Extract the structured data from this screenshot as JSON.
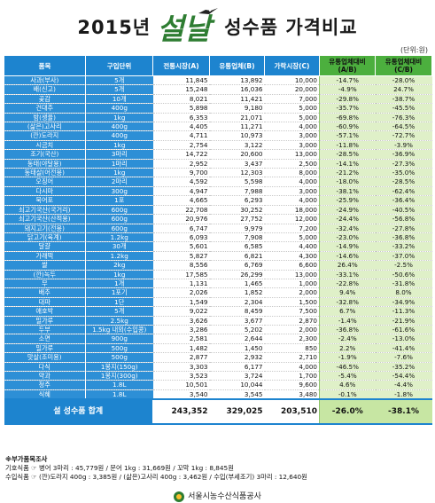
{
  "title": {
    "year": "2015년",
    "brush": "설날",
    "rest": "성수품 가격비교"
  },
  "unit_note": "(단위:원)",
  "headers": {
    "item": "품목",
    "unit": "구입단위",
    "market": "전통시장(A)",
    "distributor": "유통업체(B)",
    "household": "가락시장(C)",
    "ratio_ab": "유통업체대비",
    "ratio_ab_sub": "(A/B)",
    "ratio_cb": "유통업체대비",
    "ratio_cb_sub": "(C/B)"
  },
  "rows": [
    [
      "사과(부사)",
      "5개",
      "11,845",
      "13,892",
      "10,000",
      "-14.7%",
      "-28.0%"
    ],
    [
      "배(신고)",
      "5개",
      "15,248",
      "16,036",
      "20,000",
      "-4.9%",
      "24.7%"
    ],
    [
      "곶감",
      "10개",
      "8,021",
      "11,421",
      "7,000",
      "-29.8%",
      "-38.7%"
    ],
    [
      "건대추",
      "400g",
      "5,898",
      "9,180",
      "5,000",
      "-35.7%",
      "-45.5%"
    ],
    [
      "밤(생율)",
      "1kg",
      "6,353",
      "21,071",
      "5,000",
      "-69.8%",
      "-76.3%"
    ],
    [
      "(삶은)고사리",
      "400g",
      "4,405",
      "11,271",
      "4,000",
      "-60.9%",
      "-64.5%"
    ],
    [
      "(깐)도라지",
      "400g",
      "4,711",
      "10,973",
      "3,000",
      "-57.1%",
      "-72.7%"
    ],
    [
      "시금치",
      "1kg",
      "2,754",
      "3,122",
      "3,000",
      "-11.8%",
      "-3.9%"
    ],
    [
      "조기(국산)",
      "3마리",
      "14,722",
      "20,600",
      "13,000",
      "-28.5%",
      "-36.9%"
    ],
    [
      "동태(야달용)",
      "1마리",
      "2,952",
      "3,437",
      "2,500",
      "-14.1%",
      "-27.3%"
    ],
    [
      "동태살(어전용)",
      "1kg",
      "9,700",
      "12,303",
      "8,000",
      "-21.2%",
      "-35.0%"
    ],
    [
      "오징어",
      "2마리",
      "4,592",
      "5,598",
      "4,000",
      "-18.0%",
      "-28.5%"
    ],
    [
      "다시마",
      "300g",
      "4,947",
      "7,988",
      "3,000",
      "-38.1%",
      "-62.4%"
    ],
    [
      "북어포",
      "1포",
      "4,665",
      "6,293",
      "4,000",
      "-25.9%",
      "-36.4%"
    ],
    [
      "쇠고기국산(국거리)",
      "600g",
      "22,708",
      "30,252",
      "18,000",
      "-24.9%",
      "-40.5%"
    ],
    [
      "쇠고기국산(산적용)",
      "600g",
      "20,976",
      "27,752",
      "12,000",
      "-24.4%",
      "-56.8%"
    ],
    [
      "돼지고기(전용)",
      "600g",
      "6,747",
      "9,979",
      "7,200",
      "-32.4%",
      "-27.8%"
    ],
    [
      "닭고기(육계)",
      "1.2kg",
      "6,093",
      "7,908",
      "5,000",
      "-23.0%",
      "-36.8%"
    ],
    [
      "달걀",
      "30개",
      "5,601",
      "6,585",
      "4,400",
      "-14.9%",
      "-33.2%"
    ],
    [
      "가래떡",
      "1.2kg",
      "5,827",
      "6,821",
      "4,300",
      "-14.6%",
      "-37.0%"
    ],
    [
      "쌀",
      "2kg",
      "8,556",
      "6,769",
      "6,600",
      "26.4%",
      "-2.5%"
    ],
    [
      "(깐)녹두",
      "1kg",
      "17,585",
      "26,299",
      "13,000",
      "-33.1%",
      "-50.6%"
    ],
    [
      "무",
      "1개",
      "1,131",
      "1,465",
      "1,000",
      "-22.8%",
      "-31.8%"
    ],
    [
      "배추",
      "1포기",
      "2,026",
      "1,852",
      "2,000",
      "9.4%",
      "8.0%"
    ],
    [
      "대파",
      "1단",
      "1,549",
      "2,304",
      "1,500",
      "-32.8%",
      "-34.9%"
    ],
    [
      "애호박",
      "5개",
      "9,022",
      "8,459",
      "7,500",
      "6.7%",
      "-11.3%"
    ],
    [
      "밀가루",
      "2.5kg",
      "3,626",
      "3,677",
      "2,870",
      "-1.4%",
      "-21.9%"
    ],
    [
      "두부",
      "1.5kg 내외(수입콩)",
      "3,286",
      "5,202",
      "2,000",
      "-36.8%",
      "-61.6%"
    ],
    [
      "소면",
      "900g",
      "2,581",
      "2,644",
      "2,300",
      "-2.4%",
      "-13.0%"
    ],
    [
      "밀가루",
      "500g",
      "1,482",
      "1,450",
      "850",
      "2.2%",
      "-41.4%"
    ],
    [
      "맛살(조미용)",
      "500g",
      "2,877",
      "2,932",
      "2,710",
      "-1.9%",
      "-7.6%"
    ],
    [
      "다식",
      "1봉지(150g)",
      "3,303",
      "6,177",
      "4,000",
      "-46.5%",
      "-35.2%"
    ],
    [
      "약과",
      "1봉지(300g)",
      "3,523",
      "3,724",
      "1,700",
      "-5.4%",
      "-54.4%"
    ],
    [
      "청주",
      "1.8L",
      "10,501",
      "10,044",
      "9,600",
      "4.6%",
      "-4.4%"
    ],
    [
      "식혜",
      "1.8L",
      "3,540",
      "3,545",
      "3,480",
      "-0.1%",
      "-1.8%"
    ]
  ],
  "total": {
    "label": "설 성수품 합계",
    "market": "243,352",
    "distributor": "329,025",
    "household": "203,510",
    "ratio_ab": "-26.0%",
    "ratio_cb": "-38.1%"
  },
  "notes": {
    "heading": "※부가품목조사",
    "line1": "기호식품 ☞ 병어 3마리 : 45,779원 / 문어 1kg : 31,669원 / 꼬막 1kg : 8,845원",
    "line2": "수입식품 ☞ (깐)도라지 400g : 3,385원 / (삶은)고사리 400g : 3,462원 / 수입(부세조기) 3마리 : 12,640원"
  },
  "footer": "서울시농수산식품공사",
  "colors": {
    "header_blue": "#1d84cf",
    "header_green": "#4caf3e",
    "ratio_bg": "#dff0c8"
  }
}
